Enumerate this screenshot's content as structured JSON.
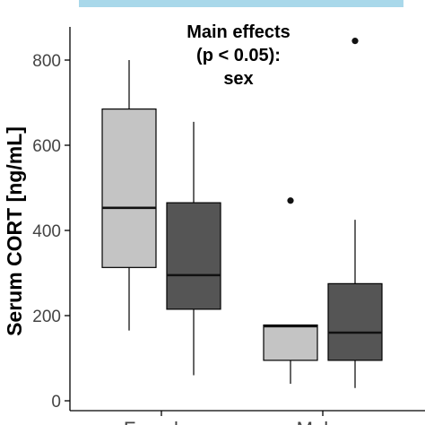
{
  "colors": {
    "banner": "#a9d8ea",
    "females_fill": "#c4c4c4",
    "males_fill": "#555555",
    "outline": "#000000",
    "axis": "#000000"
  },
  "annotation": {
    "line1": "Main effects",
    "line2": "(p < 0.05):",
    "line3": "sex"
  },
  "chart_data": {
    "type": "box",
    "ylabel": "Serum CORT [ng/mL]",
    "xlabel": "",
    "ylim": [
      0,
      880
    ],
    "yticks": [
      0,
      200,
      400,
      600,
      800
    ],
    "ytick_labels": [
      "0",
      "200",
      "400",
      "600",
      "800"
    ],
    "categories": [
      "Females",
      "Males"
    ],
    "groups": [
      {
        "category": "Females",
        "boxes": [
          {
            "fill": "#c4c4c4",
            "whisker_low": 165,
            "q1": 313,
            "median": 453,
            "q3": 685,
            "whisker_high": 800,
            "outliers": []
          },
          {
            "fill": "#555555",
            "whisker_low": 60,
            "q1": 215,
            "median": 295,
            "q3": 465,
            "whisker_high": 655,
            "outliers": []
          }
        ]
      },
      {
        "category": "Males",
        "boxes": [
          {
            "fill": "#c4c4c4",
            "whisker_low": 40,
            "q1": 95,
            "median": 175,
            "q3": 178,
            "whisker_high": 178,
            "outliers": [
              470
            ]
          },
          {
            "fill": "#555555",
            "whisker_low": 30,
            "q1": 95,
            "median": 160,
            "q3": 275,
            "whisker_high": 425,
            "outliers": [
              845
            ]
          }
        ]
      }
    ]
  }
}
